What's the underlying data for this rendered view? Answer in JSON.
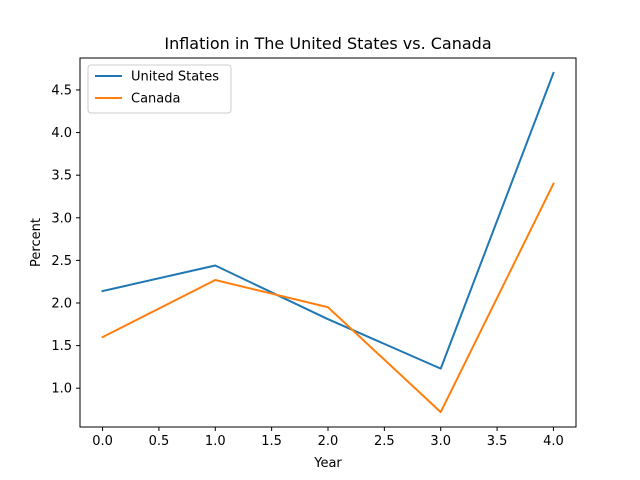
{
  "chart_data": {
    "type": "line",
    "title": "Inflation in The United States vs. Canada",
    "xlabel": "Year",
    "ylabel": "Percent",
    "x": [
      0,
      1,
      2,
      3,
      4
    ],
    "xlim": [
      -0.2,
      4.2
    ],
    "ylim": [
      0.545,
      4.875
    ],
    "xticks": [
      0.0,
      0.5,
      1.0,
      1.5,
      2.0,
      2.5,
      3.0,
      3.5,
      4.0
    ],
    "xtick_labels": [
      "0.0",
      "0.5",
      "1.0",
      "1.5",
      "2.0",
      "2.5",
      "3.0",
      "3.5",
      "4.0"
    ],
    "yticks": [
      1.0,
      1.5,
      2.0,
      2.5,
      3.0,
      3.5,
      4.0,
      4.5
    ],
    "ytick_labels": [
      "1.0",
      "1.5",
      "2.0",
      "2.5",
      "3.0",
      "3.5",
      "4.0",
      "4.5"
    ],
    "grid": false,
    "legend_position": "top-left",
    "series": [
      {
        "name": "United States",
        "color": "#1f77b4",
        "values": [
          2.14,
          2.44,
          1.81,
          1.23,
          4.7
        ]
      },
      {
        "name": "Canada",
        "color": "#ff7f0e",
        "values": [
          1.6,
          2.27,
          1.95,
          0.72,
          3.4
        ]
      }
    ]
  }
}
